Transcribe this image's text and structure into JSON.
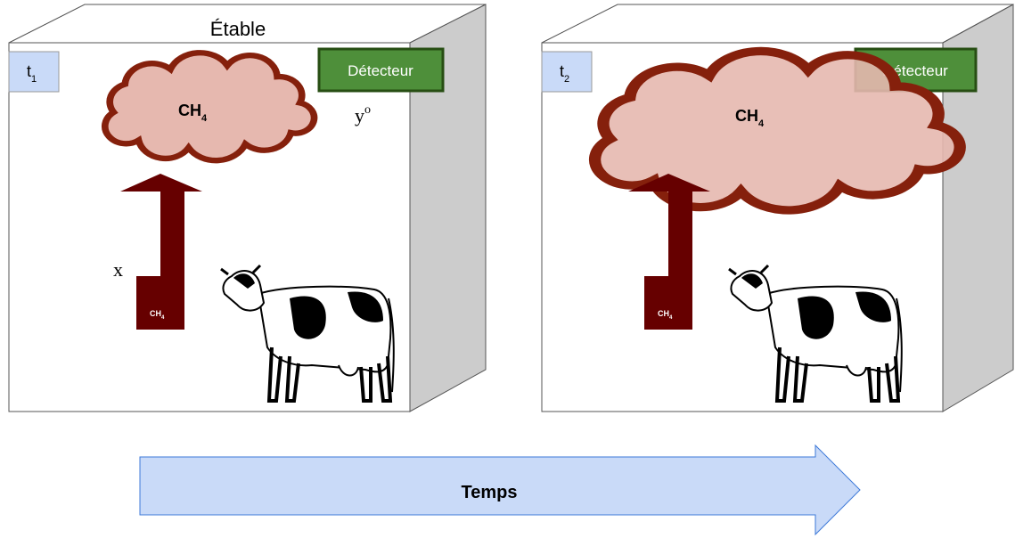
{
  "panels": [
    {
      "label": "Étable",
      "time": {
        "base": "t",
        "sub": "1"
      },
      "detector": "Détecteur",
      "cloud": {
        "base": "CH",
        "sub": "4"
      },
      "arrow": {
        "base": "CH",
        "sub": "4"
      },
      "observation": {
        "base": "y",
        "sup": "o"
      },
      "emission": "x"
    },
    {
      "time": {
        "base": "t",
        "sub": "2"
      },
      "detector": "Détecteur",
      "cloud": {
        "base": "CH",
        "sub": "4"
      },
      "arrow": {
        "base": "CH",
        "sub": "4"
      }
    }
  ],
  "timeline": "Temps"
}
